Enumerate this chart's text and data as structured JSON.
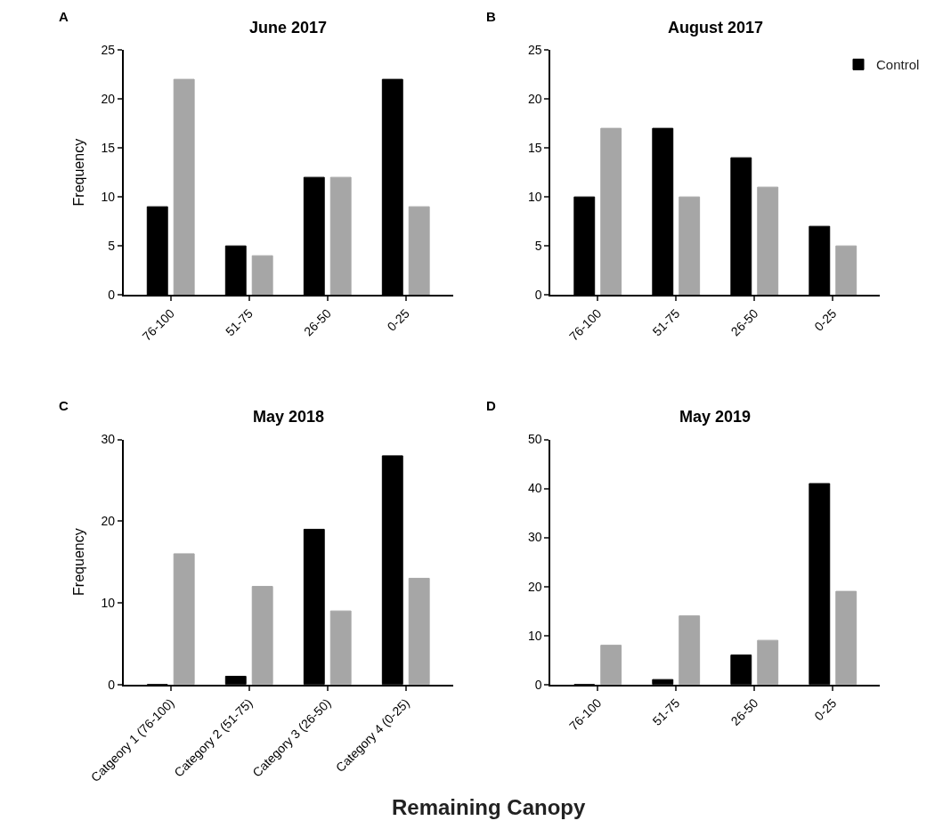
{
  "chart_data": [
    {
      "type": "bar",
      "title": "June 2017",
      "ylabel": "Frequency",
      "annotations": [
        "A"
      ],
      "categories": [
        "76-100",
        "51-75",
        "26-50",
        "0-25"
      ],
      "ylim": [
        0,
        25
      ],
      "yticks": [
        0,
        5,
        10,
        15,
        20,
        25
      ],
      "series": [
        {
          "color": "#000000",
          "values": [
            9,
            5,
            12,
            22
          ]
        },
        {
          "color": "#a6a6a6",
          "values": [
            22,
            4,
            12,
            9
          ]
        }
      ]
    },
    {
      "type": "bar",
      "title": "August 2017",
      "annotations": [
        "B"
      ],
      "categories": [
        "76-100",
        "51-75",
        "26-50",
        "0-25"
      ],
      "ylim": [
        0,
        25
      ],
      "yticks": [
        0,
        5,
        10,
        15,
        20,
        25
      ],
      "legend": "top right",
      "series": [
        {
          "name": "Control",
          "color": "#000000",
          "values": [
            10,
            17,
            14,
            7
          ]
        },
        {
          "color": "#a6a6a6",
          "values": [
            17,
            10,
            11,
            5
          ]
        }
      ]
    },
    {
      "type": "bar",
      "title": "May 2018",
      "ylabel": "Frequency",
      "xlabel": "Remaining Canopy",
      "annotations": [
        "C"
      ],
      "categories": [
        "Catgeory 1 (76-100)",
        "Category 2 (51-75)",
        "Category 3 (26-50)",
        "Category 4 (0-25)"
      ],
      "ylim": [
        0,
        30
      ],
      "yticks": [
        0,
        10,
        20,
        30
      ],
      "series": [
        {
          "color": "#000000",
          "values": [
            0,
            1,
            19,
            28
          ]
        },
        {
          "color": "#a6a6a6",
          "values": [
            16,
            12,
            9,
            13
          ]
        }
      ]
    },
    {
      "type": "bar",
      "title": "May 2019",
      "annotations": [
        "D"
      ],
      "categories": [
        "76-100",
        "51-75",
        "26-50",
        "0-25"
      ],
      "ylim": [
        0,
        50
      ],
      "yticks": [
        0,
        10,
        20,
        30,
        40,
        50
      ],
      "series": [
        {
          "color": "#000000",
          "values": [
            0,
            1,
            6,
            41
          ]
        },
        {
          "color": "#a6a6a6",
          "values": [
            8,
            14,
            9,
            19
          ]
        }
      ]
    }
  ]
}
